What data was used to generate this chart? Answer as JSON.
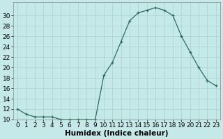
{
  "x": [
    0,
    1,
    2,
    3,
    4,
    5,
    6,
    7,
    8,
    9,
    10,
    11,
    12,
    13,
    14,
    15,
    16,
    17,
    18,
    19,
    20,
    21,
    22,
    23
  ],
  "y": [
    12,
    11,
    10.5,
    10.5,
    10.5,
    10.0,
    10.0,
    10.0,
    10.0,
    10.0,
    18.5,
    21,
    25,
    29,
    30.5,
    31,
    31.5,
    31,
    30,
    26,
    23,
    20,
    17.5,
    16.5
  ],
  "line_color": "#2a6e5e",
  "bg_color": "#c5e8e8",
  "grid_color": "#afd4d4",
  "xlabel": "Humidex (Indice chaleur)",
  "xlabel_fontsize": 7.5,
  "tick_fontsize": 6.5,
  "ylim": [
    10,
    32
  ],
  "xlim": [
    -0.5,
    23.5
  ],
  "yticks": [
    10,
    12,
    14,
    16,
    18,
    20,
    22,
    24,
    26,
    28,
    30
  ],
  "xticks": [
    0,
    1,
    2,
    3,
    4,
    5,
    6,
    7,
    8,
    9,
    10,
    11,
    12,
    13,
    14,
    15,
    16,
    17,
    18,
    19,
    20,
    21,
    22,
    23
  ]
}
